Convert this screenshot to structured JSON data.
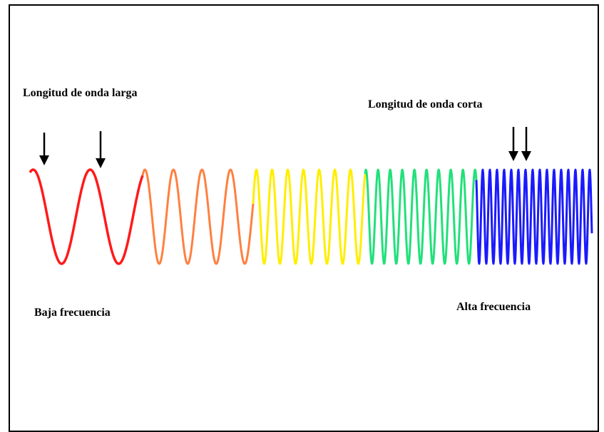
{
  "labels": {
    "long_wavelength": "Longitud de onda larga",
    "short_wavelength": "Longitud de onda corta",
    "low_frequency": "Baja frecuencia",
    "high_frequency": "Alta frecuencia"
  },
  "wave_segments": [
    {
      "name": "red",
      "color": "#ff1a1a"
    },
    {
      "name": "orange",
      "color": "#ff8040"
    },
    {
      "name": "yellow",
      "color": "#ffee00"
    },
    {
      "name": "green",
      "color": "#22e07a"
    },
    {
      "name": "blue",
      "color": "#1a1aff"
    }
  ],
  "arrow_color": "#000000"
}
